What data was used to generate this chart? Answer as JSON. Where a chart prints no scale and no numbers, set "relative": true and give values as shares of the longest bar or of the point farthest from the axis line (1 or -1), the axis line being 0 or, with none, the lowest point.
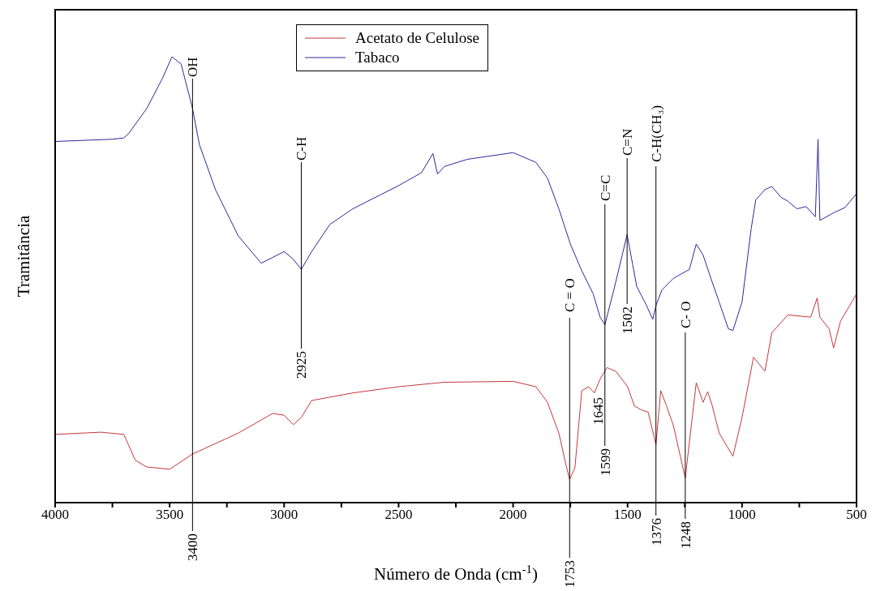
{
  "chart_data": {
    "type": "line",
    "relative": true,
    "xlabel": "Número de Onda (cm$^{-1}$)",
    "ylabel": "Tramitância",
    "xlim": [
      4000,
      500
    ],
    "xticks": [
      4000,
      {
        "value": 3750,
        "label": null
      },
      3500,
      {
        "value": 3250,
        "label": null
      },
      3000,
      {
        "value": 2750,
        "label": null
      },
      2500,
      {
        "value": 2250,
        "label": null
      },
      2000,
      {
        "value": 1750,
        "label": null
      },
      1500,
      {
        "value": 1250,
        "label": null
      },
      1000,
      {
        "value": 750,
        "label": null
      },
      500
    ],
    "legend": "top",
    "grid": false,
    "series": [
      {
        "name": "Acetato de Celulose",
        "color": "#c4373b",
        "x": [
          4000,
          3800,
          3700,
          3650,
          3600,
          3500,
          3400,
          3200,
          3050,
          3000,
          2960,
          2925,
          2880,
          2700,
          2500,
          2300,
          2000,
          1900,
          1850,
          1800,
          1770,
          1753,
          1730,
          1700,
          1670,
          1645,
          1620,
          1590,
          1550,
          1500,
          1470,
          1440,
          1410,
          1376,
          1355,
          1330,
          1300,
          1248,
          1200,
          1170,
          1150,
          1130,
          1100,
          1040,
          1000,
          950,
          900,
          870,
          800,
          700,
          672,
          660,
          620,
          600,
          570,
          500
        ],
        "values": [
          0.153,
          0.158,
          0.153,
          0.095,
          0.08,
          0.075,
          0.109,
          0.156,
          0.2,
          0.196,
          0.175,
          0.191,
          0.229,
          0.246,
          0.26,
          0.27,
          0.272,
          0.26,
          0.225,
          0.156,
          0.087,
          0.052,
          0.078,
          0.251,
          0.26,
          0.246,
          0.277,
          0.303,
          0.294,
          0.26,
          0.217,
          0.208,
          0.203,
          0.13,
          0.251,
          0.217,
          0.173,
          0.055,
          0.269,
          0.225,
          0.249,
          0.217,
          0.156,
          0.104,
          0.191,
          0.326,
          0.295,
          0.381,
          0.421,
          0.416,
          0.459,
          0.416,
          0.39,
          0.347,
          0.407,
          0.468
        ]
      },
      {
        "name": "Tabaco",
        "color": "#2a2a9c",
        "x": [
          4000,
          3750,
          3700,
          3680,
          3600,
          3530,
          3490,
          3450,
          3400,
          3370,
          3300,
          3200,
          3100,
          3000,
          2960,
          2925,
          2880,
          2800,
          2700,
          2500,
          2400,
          2350,
          2330,
          2300,
          2200,
          2000,
          1900,
          1850,
          1800,
          1750,
          1700,
          1650,
          1620,
          1599,
          1560,
          1502,
          1460,
          1420,
          1390,
          1376,
          1350,
          1300,
          1230,
          1200,
          1170,
          1130,
          1100,
          1060,
          1040,
          1000,
          960,
          940,
          900,
          870,
          830,
          800,
          760,
          720,
          680,
          668,
          660,
          600,
          550,
          500
        ],
        "values": [
          0.81,
          0.815,
          0.818,
          0.827,
          0.884,
          0.953,
          1,
          0.984,
          0.884,
          0.803,
          0.702,
          0.598,
          0.537,
          0.563,
          0.546,
          0.523,
          0.563,
          0.624,
          0.659,
          0.711,
          0.74,
          0.783,
          0.737,
          0.754,
          0.77,
          0.785,
          0.763,
          0.728,
          0.659,
          0.58,
          0.52,
          0.468,
          0.416,
          0.399,
          0.477,
          0.601,
          0.485,
          0.445,
          0.411,
          0.442,
          0.477,
          0.503,
          0.523,
          0.58,
          0.555,
          0.494,
          0.45,
          0.39,
          0.386,
          0.45,
          0.615,
          0.679,
          0.702,
          0.709,
          0.685,
          0.676,
          0.659,
          0.664,
          0.641,
          0.815,
          0.633,
          0.65,
          0.662,
          0.693
        ]
      }
    ],
    "ref_lines": [
      {
        "axis": "x",
        "value": 3400,
        "label": "3400"
      },
      {
        "axis": "x",
        "value": 2925,
        "label": "2925"
      },
      {
        "axis": "x",
        "value": 1753,
        "label": "1753"
      },
      {
        "axis": "x",
        "value": 1599,
        "label": "1599"
      },
      {
        "axis": "x",
        "value": 1502,
        "label": "1502"
      },
      {
        "axis": "x",
        "value": 1376,
        "label": "1376"
      },
      {
        "axis": "x",
        "value": 1248,
        "label": "1248"
      }
    ],
    "annotations": [
      "OH",
      "C-H",
      "C = O",
      "C=C",
      "C=N",
      "C-H(CH₃)",
      "C- O",
      "1645"
    ]
  }
}
